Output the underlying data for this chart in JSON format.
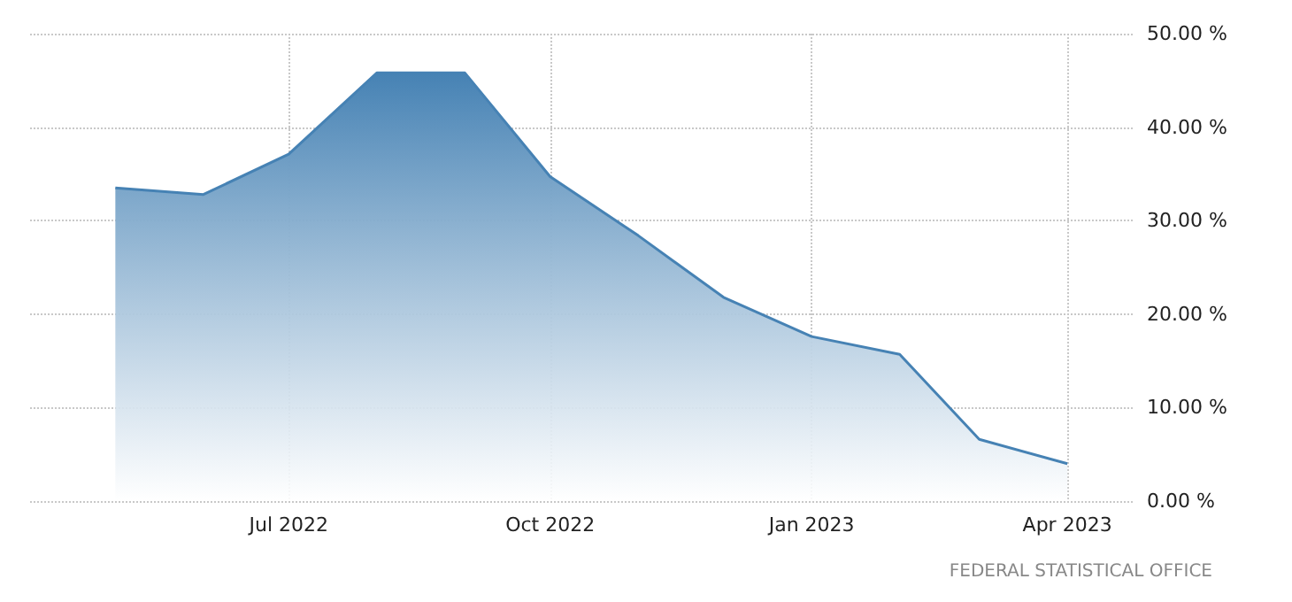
{
  "chart_data": {
    "type": "area",
    "x": [
      "2022-05",
      "2022-06",
      "2022-07",
      "2022-08",
      "2022-09",
      "2022-10",
      "2022-11",
      "2022-12",
      "2023-01",
      "2023-02",
      "2023-03",
      "2023-04"
    ],
    "series": [
      {
        "color": "#4682b4",
        "values": [
          33.5,
          32.8,
          37.1,
          45.8,
          45.8,
          34.7,
          28.4,
          21.8,
          17.6,
          15.7,
          6.6,
          4.0
        ]
      }
    ],
    "xlim": [
      "2022-04-01",
      "2023-04-24"
    ],
    "xticks": [
      {
        "value": "2022-07",
        "label": "Jul 2022"
      },
      {
        "value": "2022-10",
        "label": "Oct 2022"
      },
      {
        "value": "2023-01",
        "label": "Jan 2023"
      },
      {
        "value": "2023-04",
        "label": "Apr 2023"
      }
    ],
    "ylim": [
      0,
      50
    ],
    "yticks": [
      {
        "value": 0,
        "label": "0.00 %"
      },
      {
        "value": 10,
        "label": "10.00 %"
      },
      {
        "value": 20,
        "label": "20.00 %"
      },
      {
        "value": 30,
        "label": "30.00 %"
      },
      {
        "value": 40,
        "label": "40.00 %"
      },
      {
        "value": 50,
        "label": "50.00 %"
      }
    ],
    "grid": true,
    "annotations": [
      "FEDERAL STATISTICAL OFFICE"
    ]
  }
}
